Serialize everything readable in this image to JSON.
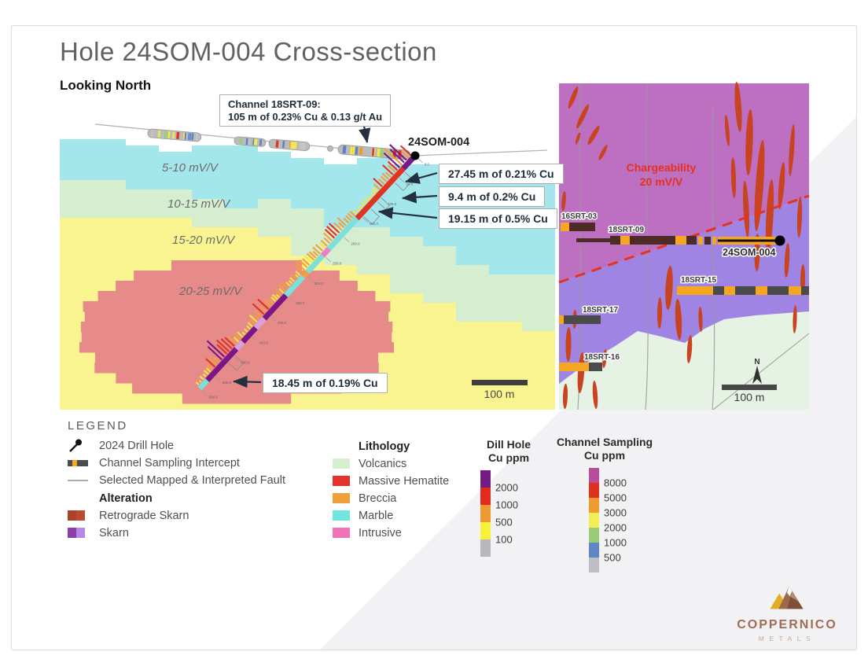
{
  "title": "Hole 24SOM-004 Cross-section",
  "orientation_label": "Looking North",
  "cross_section": {
    "chargeability_zones": [
      "5-10 mV/V",
      "10-15 mV/V",
      "15-20 mV/V",
      "20-25 mV/V"
    ],
    "hole_label": "24SOM-004",
    "channel_callout": {
      "title": "Channel 18SRT-09:",
      "value": "105 m of 0.23% Cu & 0.13 g/t Au"
    },
    "intercept_callouts": [
      "27.45 m of 0.21% Cu",
      "9.4 m of 0.2% Cu",
      "19.15 m of 0.5% Cu",
      "18.45 m of 0.19% Cu"
    ],
    "depth_ticks": [
      "0.0",
      "50.0",
      "100.0",
      "150.0",
      "200.0",
      "250.0",
      "300.0",
      "350.0",
      "400.0",
      "450.0",
      "500.0",
      "550.0",
      "586.6"
    ],
    "total_depth": 586.6,
    "scale_bar": "100 m"
  },
  "map": {
    "chargeability_line1": "Chargeability",
    "chargeability_line2": "20 mV/V",
    "holes": [
      "16SRT-03",
      "18SRT-09",
      "24SOM-004",
      "18SRT-15",
      "18SRT-17",
      "18SRT-16"
    ],
    "north_label": "N",
    "scale_bar": "100 m"
  },
  "legend": {
    "header": "LEGEND",
    "symbols": [
      {
        "label": "2024 Drill Hole",
        "icon": "drill-hole-icon"
      },
      {
        "label": "Channel Sampling Intercept",
        "icon": "channel-intercept-icon"
      },
      {
        "label": "Selected Mapped & Interpreted Fault",
        "icon": "fault-line-icon"
      }
    ],
    "alteration": {
      "header": "Alteration",
      "items": [
        {
          "label": "Retrograde Skarn",
          "colors": [
            "#ac4129",
            "#bc4c31"
          ]
        },
        {
          "label": "Skarn",
          "colors": [
            "#8b3fa8",
            "#b388e8"
          ]
        }
      ]
    },
    "lithology": {
      "header": "Lithology",
      "items": [
        {
          "label": "Volcanics",
          "color": "#d8efcf"
        },
        {
          "label": "Massive Hematite",
          "color": "#e5332b"
        },
        {
          "label": "Breccia",
          "color": "#efa03b"
        },
        {
          "label": "Marble",
          "color": "#6fe6de"
        },
        {
          "label": "Intrusive",
          "color": "#f272b8"
        }
      ]
    },
    "drill_scale": {
      "title_line1": "Dill Hole",
      "title_line2": "Cu ppm",
      "ticks": [
        "2000",
        "1000",
        "500",
        "100"
      ],
      "colors": [
        "#731b85",
        "#e22b1d",
        "#ef9a31",
        "#f7f13c",
        "#b7b7bc"
      ]
    },
    "channel_scale": {
      "title_line1": "Channel Sampling",
      "title_line2": "Cu ppm",
      "ticks": [
        "8000",
        "5000",
        "3000",
        "2000",
        "1000",
        "500"
      ],
      "colors": [
        "#b94d9c",
        "#e0301e",
        "#f09a30",
        "#f2ee55",
        "#9ccb78",
        "#5f86c6",
        "#bfbfc3"
      ]
    }
  },
  "logo": {
    "brand": "COPPERNICO",
    "sub": "METALS"
  },
  "colors": {
    "zone_5_10": "#a3e6ec",
    "zone_10_15": "#d5eed0",
    "zone_15_20": "#f9f490",
    "zone_20_25": "#e78a8a",
    "surface_line": "#b5b5b5",
    "map_chargeability_high": "#bd6fc2",
    "map_chargeability_mid": "#a084e4",
    "map_volcanics": "#e6f3e4",
    "map_vein": "#c8431f",
    "map_fault_dashed": "#e8321c",
    "trace_skarn": "#7a1688",
    "trace_hematite": "#e03322",
    "trace_marble": "#7ce0da",
    "trace_intrusive": "#f07ec2",
    "trace_lilac": "#d9a0dd",
    "trace_breccia": "#f0a03c",
    "bar_high": "#7a1688",
    "bar_med": "#e03322",
    "bar_low": "#f0a03c",
    "bar_trace": "#f6e838",
    "channel_dark": "#4d2b26",
    "channel_orange": "#f5a623",
    "intercept_dark": "#4b4b4b",
    "arrow": "#23303f"
  }
}
